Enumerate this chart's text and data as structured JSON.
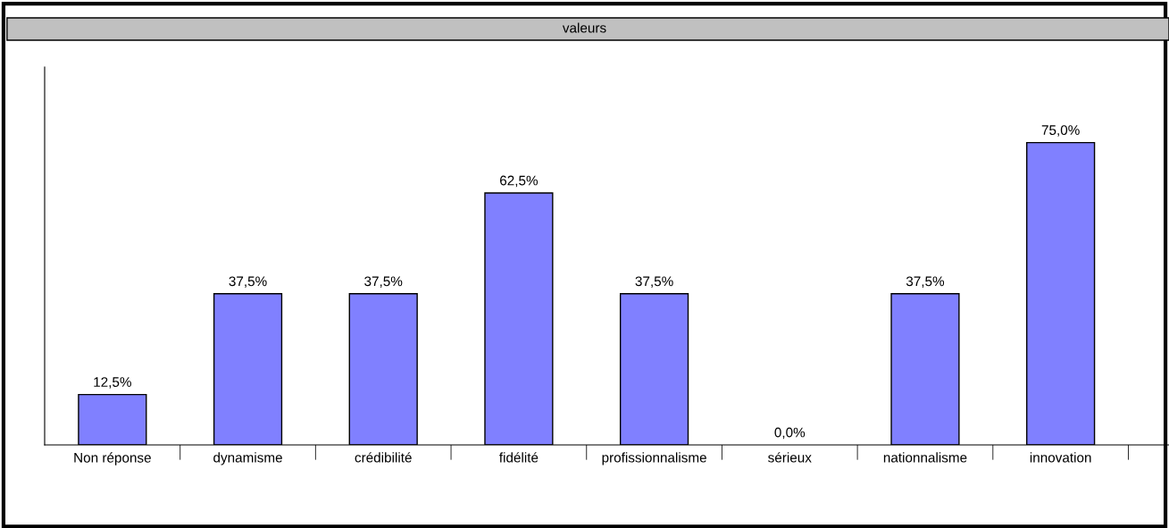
{
  "chart_data": {
    "type": "bar",
    "title": "valeurs",
    "categories": [
      "Non réponse",
      "dynamisme",
      "crédibilité",
      "fidélité",
      "profissionnalisme",
      "sérieux",
      "nationnalisme",
      "innovation"
    ],
    "values": [
      12.5,
      37.5,
      37.5,
      62.5,
      37.5,
      0.0,
      37.5,
      75.0
    ],
    "value_labels": [
      "12,5%",
      "37,5%",
      "37,5%",
      "62,5%",
      "37,5%",
      "0,0%",
      "37,5%",
      "75,0%"
    ],
    "color": "#8080ff",
    "grid": false,
    "legend": false
  }
}
